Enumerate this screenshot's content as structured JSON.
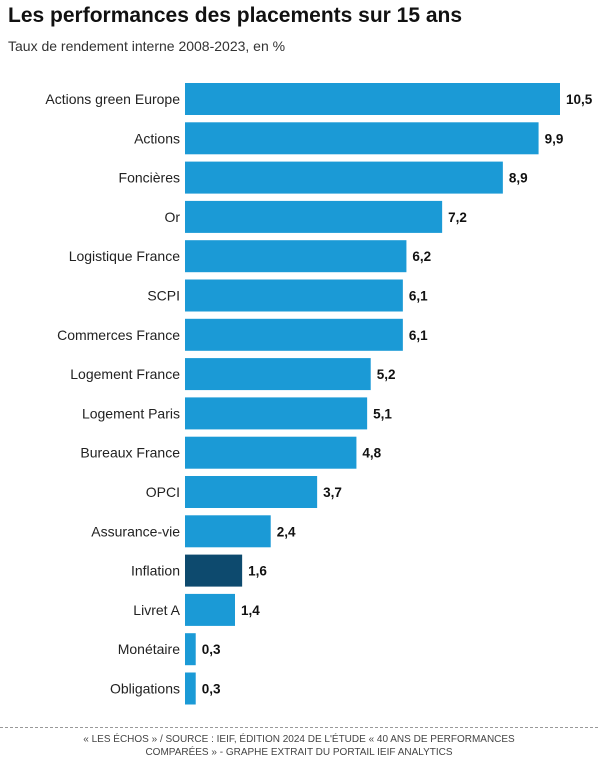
{
  "header": {
    "title": "Les performances des placements sur 15 ans",
    "subtitle": "Taux de rendement interne 2008-2023, en %"
  },
  "chart_data": {
    "type": "bar",
    "orientation": "horizontal",
    "title": "Les performances des placements sur 15 ans",
    "subtitle": "Taux de rendement interne 2008-2023, en %",
    "categories": [
      "Actions green Europe",
      "Actions",
      "Foncières",
      "Or",
      "Logistique France",
      "SCPI",
      "Commerces France",
      "Logement France",
      "Logement Paris",
      "Bureaux France",
      "OPCI",
      "Assurance-vie",
      "Inflation",
      "Livret A",
      "Monétaire",
      "Obligations"
    ],
    "values": [
      10.5,
      9.9,
      8.9,
      7.2,
      6.2,
      6.1,
      6.1,
      5.2,
      5.1,
      4.8,
      3.7,
      2.4,
      1.6,
      1.4,
      0.3,
      0.3
    ],
    "value_labels": [
      "10,5",
      "9,9",
      "8,9",
      "7,2",
      "6,2",
      "6,1",
      "6,1",
      "5,2",
      "5,1",
      "4,8",
      "3,7",
      "2,4",
      "1,6",
      "1,4",
      "0,3",
      "0,3"
    ],
    "highlight_category": "Inflation",
    "colors": {
      "bar": "#1b9ad6",
      "highlight": "#0d4a6e"
    },
    "xlim": [
      0,
      10.5
    ],
    "grid": false,
    "legend": "none"
  },
  "footer": {
    "source_line1": "« LES ÉCHOS » / SOURCE : IEIF, ÉDITION 2024 DE L'ÉTUDE « 40 ANS DE PERFORMANCES",
    "source_line2": "COMPARÉES » - GRAPHE EXTRAIT DU PORTAIL IEIF ANALYTICS"
  }
}
